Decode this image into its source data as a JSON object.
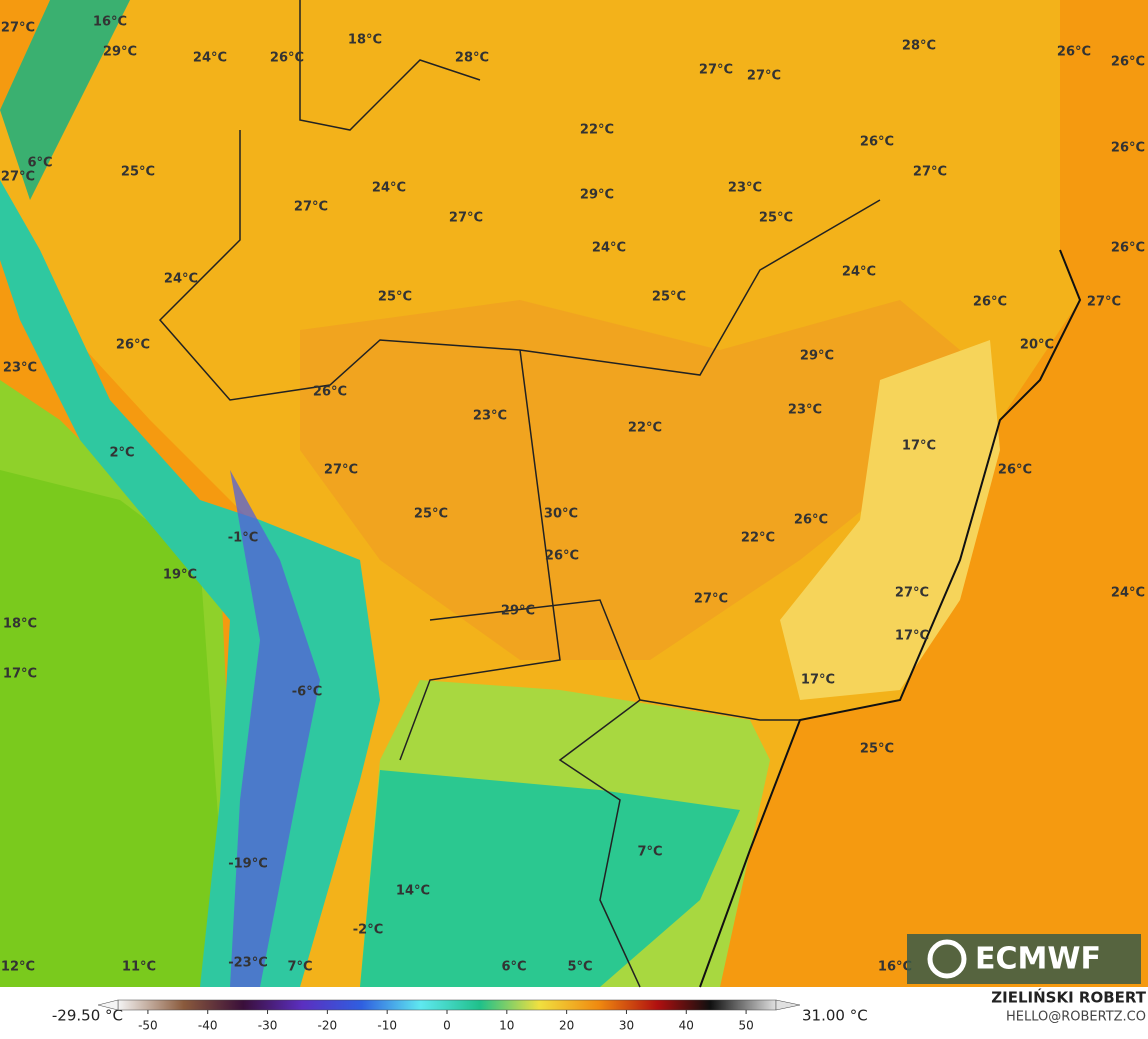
{
  "map": {
    "temperature_labels": [
      "27°C",
      "16°C",
      "29°C",
      "24°C",
      "26°C",
      "18°C",
      "28°C",
      "27°C",
      "27°C",
      "28°C",
      "26°C",
      "26°C",
      "22°C",
      "26°C",
      "26°C",
      "6°C",
      "27°C",
      "25°C",
      "24°C",
      "29°C",
      "23°C",
      "27°C",
      "27°C",
      "27°C",
      "25°C",
      "24°C",
      "26°C",
      "24°C",
      "24°C",
      "25°C",
      "25°C",
      "26°C",
      "27°C",
      "26°C",
      "20°C",
      "29°C",
      "23°C",
      "26°C",
      "23°C",
      "23°C",
      "22°C",
      "17°C",
      "2°C",
      "27°C",
      "26°C",
      "25°C",
      "30°C",
      "26°C",
      "-1°C",
      "22°C",
      "26°C",
      "19°C",
      "24°C",
      "27°C",
      "29°C",
      "27°C",
      "18°C",
      "17°C",
      "17°C",
      "17°C",
      "-6°C",
      "25°C",
      "7°C",
      "-19°C",
      "14°C",
      "-2°C",
      "12°C",
      "11°C",
      "-23°C",
      "7°C",
      "6°C",
      "5°C",
      "16°C"
    ],
    "logo": "ECMWF"
  },
  "colorbar": {
    "min_label": "-29.50 °C",
    "max_label": "31.00 °C",
    "lim": [
      -55,
      55
    ],
    "ticks": [
      -50,
      -40,
      -30,
      -20,
      -10,
      0,
      10,
      20,
      30,
      40,
      50
    ]
  },
  "credit": {
    "name": "ZIELIŃSKI ROBERT",
    "contact": "HELLO@ROBERTZ.CO"
  }
}
